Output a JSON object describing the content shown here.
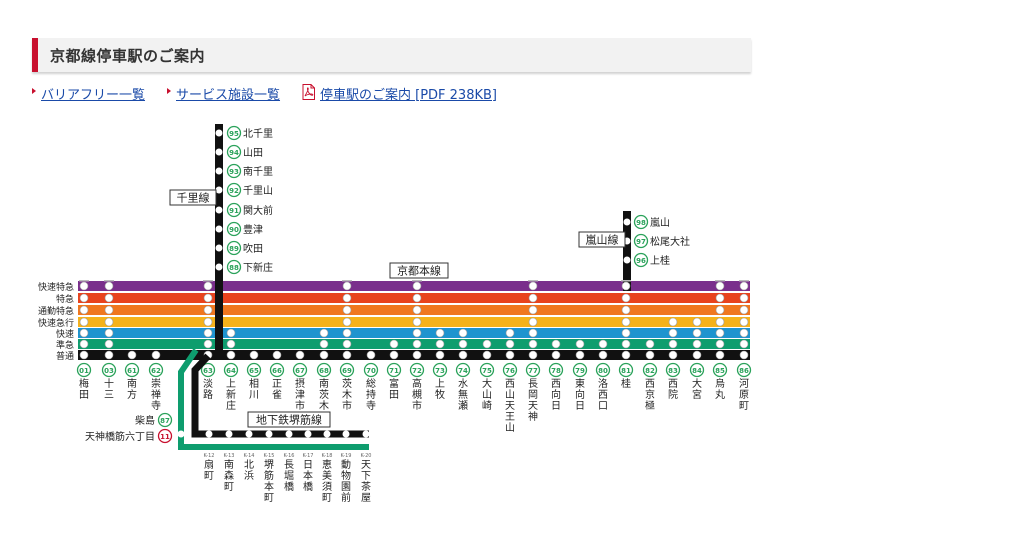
{
  "heading": {
    "title": "京都線停車駅のご案内"
  },
  "links": [
    {
      "label": "バリアフリー一覧"
    },
    {
      "label": "サービス施設一覧"
    },
    {
      "label": "停車駅のご案内 [PDF 238KB]"
    }
  ],
  "line_labels": {
    "senri": "千里線",
    "kyoto_main": "京都本線",
    "arashiyama": "嵐山線",
    "subway": "地下鉄堺筋線"
  },
  "service_types": [
    {
      "label": "快速特急",
      "color": "#7a2f8c"
    },
    {
      "label": "特急",
      "color": "#e8431e"
    },
    {
      "label": "通勤特急",
      "color": "#f0771f"
    },
    {
      "label": "快速急行",
      "color": "#f5b21b"
    },
    {
      "label": "快速",
      "color": "#1e94cf"
    },
    {
      "label": "準急",
      "color": "#0e9d6e"
    },
    {
      "label": "普通",
      "color": "#111111"
    }
  ],
  "colors": {
    "station_code": "#2aa25a",
    "subway_code": "#c8102e",
    "subway_line": "#0e9d6e",
    "accent": "#c8102e"
  },
  "main_stations": [
    {
      "code": "01",
      "name": "梅田",
      "stops": [
        1,
        1,
        1,
        1,
        1,
        1,
        1
      ]
    },
    {
      "code": "03",
      "name": "十三",
      "stops": [
        1,
        1,
        1,
        1,
        1,
        1,
        1
      ]
    },
    {
      "code": "61",
      "name": "南方",
      "stops": [
        0,
        0,
        0,
        0,
        0,
        0,
        1
      ]
    },
    {
      "code": "62",
      "name": "崇禅寺",
      "stops": [
        0,
        0,
        0,
        0,
        0,
        0,
        1
      ]
    },
    {
      "code": "63",
      "name": "淡路",
      "stops": [
        1,
        1,
        1,
        1,
        1,
        1,
        1
      ]
    },
    {
      "code": "64",
      "name": "上新庄",
      "stops": [
        0,
        0,
        0,
        0,
        1,
        1,
        1
      ]
    },
    {
      "code": "65",
      "name": "相川",
      "stops": [
        0,
        0,
        0,
        0,
        0,
        0,
        1
      ]
    },
    {
      "code": "66",
      "name": "正雀",
      "stops": [
        0,
        0,
        0,
        0,
        0,
        0,
        1
      ]
    },
    {
      "code": "67",
      "name": "摂津市",
      "stops": [
        0,
        0,
        0,
        0,
        0,
        0,
        1
      ]
    },
    {
      "code": "68",
      "name": "南茨木",
      "stops": [
        0,
        0,
        0,
        0,
        1,
        1,
        1
      ]
    },
    {
      "code": "69",
      "name": "茨木市",
      "stops": [
        1,
        1,
        1,
        1,
        1,
        1,
        1
      ]
    },
    {
      "code": "70",
      "name": "総持寺",
      "stops": [
        0,
        0,
        0,
        0,
        0,
        0,
        1
      ]
    },
    {
      "code": "71",
      "name": "富田",
      "stops": [
        0,
        0,
        0,
        0,
        0,
        1,
        1
      ]
    },
    {
      "code": "72",
      "name": "高槻市",
      "stops": [
        1,
        1,
        1,
        1,
        1,
        1,
        1
      ]
    },
    {
      "code": "73",
      "name": "上牧",
      "stops": [
        0,
        0,
        0,
        0,
        1,
        1,
        1
      ]
    },
    {
      "code": "74",
      "name": "水無瀬",
      "stops": [
        0,
        0,
        0,
        0,
        1,
        1,
        1
      ]
    },
    {
      "code": "75",
      "name": "大山崎",
      "stops": [
        0,
        0,
        0,
        0,
        0,
        1,
        1
      ]
    },
    {
      "code": "76",
      "name": "西山天王山",
      "stops": [
        0,
        0,
        0,
        0,
        1,
        1,
        1
      ]
    },
    {
      "code": "77",
      "name": "長岡天神",
      "stops": [
        1,
        1,
        1,
        1,
        1,
        1,
        1
      ]
    },
    {
      "code": "78",
      "name": "西向日",
      "stops": [
        0,
        0,
        0,
        0,
        0,
        1,
        1
      ]
    },
    {
      "code": "79",
      "name": "東向日",
      "stops": [
        0,
        0,
        0,
        0,
        0,
        1,
        1
      ]
    },
    {
      "code": "80",
      "name": "洛西口",
      "stops": [
        0,
        0,
        0,
        0,
        0,
        1,
        1
      ]
    },
    {
      "code": "81",
      "name": "桂",
      "stops": [
        1,
        1,
        1,
        1,
        1,
        1,
        1
      ]
    },
    {
      "code": "82",
      "name": "西京極",
      "stops": [
        0,
        0,
        0,
        0,
        0,
        1,
        1
      ]
    },
    {
      "code": "83",
      "name": "西院",
      "stops": [
        0,
        0,
        0,
        1,
        1,
        1,
        1
      ]
    },
    {
      "code": "84",
      "name": "大宮",
      "stops": [
        0,
        0,
        0,
        1,
        1,
        1,
        1
      ]
    },
    {
      "code": "85",
      "name": "烏丸",
      "stops": [
        1,
        1,
        1,
        1,
        1,
        1,
        1
      ]
    },
    {
      "code": "86",
      "name": "河原町",
      "stops": [
        1,
        1,
        1,
        1,
        1,
        1,
        1
      ]
    }
  ],
  "senri_stations": [
    {
      "code": "95",
      "name": "北千里"
    },
    {
      "code": "94",
      "name": "山田"
    },
    {
      "code": "93",
      "name": "南千里"
    },
    {
      "code": "92",
      "name": "千里山"
    },
    {
      "code": "91",
      "name": "関大前"
    },
    {
      "code": "90",
      "name": "豊津"
    },
    {
      "code": "89",
      "name": "吹田"
    },
    {
      "code": "88",
      "name": "下新庄"
    }
  ],
  "arashiyama_stations": [
    {
      "code": "98",
      "name": "嵐山"
    },
    {
      "code": "97",
      "name": "松尾大社"
    },
    {
      "code": "96",
      "name": "上桂"
    }
  ],
  "subway_branch": [
    {
      "code": "87",
      "name": "柴島"
    },
    {
      "code": "11",
      "name": "天神橋筋六丁目"
    }
  ],
  "subway_stations": [
    {
      "code": "K-12",
      "name": "扇町"
    },
    {
      "code": "K-13",
      "name": "南森町"
    },
    {
      "code": "K-14",
      "name": "北浜"
    },
    {
      "code": "K-15",
      "name": "堺筋本町"
    },
    {
      "code": "K-16",
      "name": "長堀橋"
    },
    {
      "code": "K-17",
      "name": "日本橋"
    },
    {
      "code": "K-18",
      "name": "恵美須町"
    },
    {
      "code": "K-19",
      "name": "動物園前"
    },
    {
      "code": "K-20",
      "name": "天下茶屋"
    }
  ]
}
